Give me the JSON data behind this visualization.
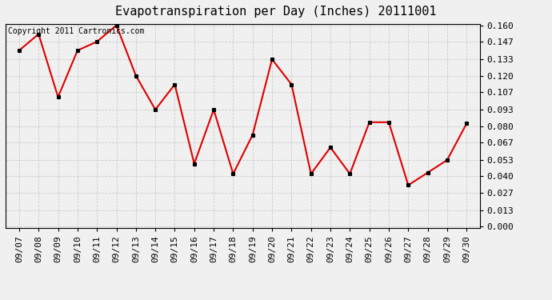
{
  "title": "Evapotranspiration per Day (Inches) 20111001",
  "copyright_text": "Copyright 2011 Cartronics.com",
  "x_labels": [
    "09/07",
    "09/08",
    "09/09",
    "09/10",
    "09/11",
    "09/12",
    "09/13",
    "09/14",
    "09/15",
    "09/16",
    "09/17",
    "09/18",
    "09/19",
    "09/20",
    "09/21",
    "09/22",
    "09/23",
    "09/24",
    "09/25",
    "09/26",
    "09/27",
    "09/28",
    "09/29",
    "09/30"
  ],
  "y_values": [
    0.14,
    0.153,
    0.103,
    0.14,
    0.147,
    0.16,
    0.12,
    0.093,
    0.113,
    0.05,
    0.093,
    0.042,
    0.073,
    0.133,
    0.113,
    0.042,
    0.063,
    0.042,
    0.083,
    0.083,
    0.033,
    0.043,
    0.053,
    0.082
  ],
  "line_color": "#dd0000",
  "marker_color": "#000000",
  "background_color": "#f0f0f0",
  "plot_bg_color": "#f0f0f0",
  "grid_color": "#cccccc",
  "title_fontsize": 11,
  "copyright_fontsize": 7,
  "tick_fontsize": 8,
  "y_min": 0.0,
  "y_max": 0.16,
  "y_ticks": [
    0.0,
    0.013,
    0.027,
    0.04,
    0.053,
    0.067,
    0.08,
    0.093,
    0.107,
    0.12,
    0.133,
    0.147,
    0.16
  ]
}
